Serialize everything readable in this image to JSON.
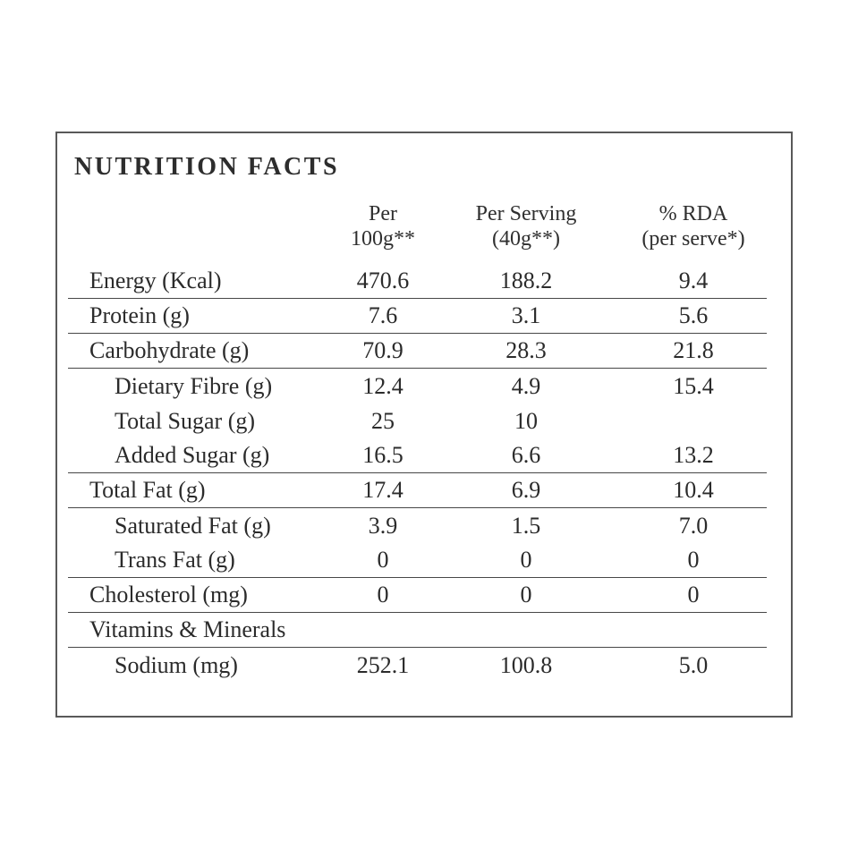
{
  "title": "NUTRITION FACTS",
  "table": {
    "column_headers": [
      {
        "line1": "Per",
        "line2": "100g**"
      },
      {
        "line1": "Per Serving",
        "line2": "(40g**)"
      },
      {
        "line1": "% RDA",
        "line2": "(per serve*)"
      }
    ],
    "rows": [
      {
        "label": "Energy (Kcal)",
        "per_100g": "470.6",
        "per_serving": "188.2",
        "rda": "9.4",
        "indent": false,
        "divider": true
      },
      {
        "label": "Protein (g)",
        "per_100g": "7.6",
        "per_serving": "3.1",
        "rda": "5.6",
        "indent": false,
        "divider": true
      },
      {
        "label": "Carbohydrate (g)",
        "per_100g": "70.9",
        "per_serving": "28.3",
        "rda": "21.8",
        "indent": false,
        "divider": true
      },
      {
        "label": "Dietary Fibre (g)",
        "per_100g": "12.4",
        "per_serving": "4.9",
        "rda": "15.4",
        "indent": true,
        "divider": false
      },
      {
        "label": "Total Sugar (g)",
        "per_100g": "25",
        "per_serving": "10",
        "rda": "",
        "indent": true,
        "divider": false
      },
      {
        "label": "Added Sugar (g)",
        "per_100g": "16.5",
        "per_serving": "6.6",
        "rda": "13.2",
        "indent": true,
        "divider": true
      },
      {
        "label": "Total Fat (g)",
        "per_100g": "17.4",
        "per_serving": "6.9",
        "rda": "10.4",
        "indent": false,
        "divider": true
      },
      {
        "label": "Saturated Fat (g)",
        "per_100g": "3.9",
        "per_serving": "1.5",
        "rda": "7.0",
        "indent": true,
        "divider": false
      },
      {
        "label": "Trans Fat (g)",
        "per_100g": "0",
        "per_serving": "0",
        "rda": "0",
        "indent": true,
        "divider": true
      },
      {
        "label": "Cholesterol (mg)",
        "per_100g": "0",
        "per_serving": "0",
        "rda": "0",
        "indent": false,
        "divider": true
      },
      {
        "label": "Vitamins & Minerals",
        "per_100g": "",
        "per_serving": "",
        "rda": "",
        "indent": false,
        "divider": true
      },
      {
        "label": "Sodium (mg)",
        "per_100g": "252.1",
        "per_serving": "100.8",
        "rda": "5.0",
        "indent": true,
        "divider": false
      }
    ]
  },
  "colors": {
    "text": "#2d2d2d",
    "divider_line": "#474747",
    "box_border": "#595959",
    "background": "#ffffff"
  }
}
